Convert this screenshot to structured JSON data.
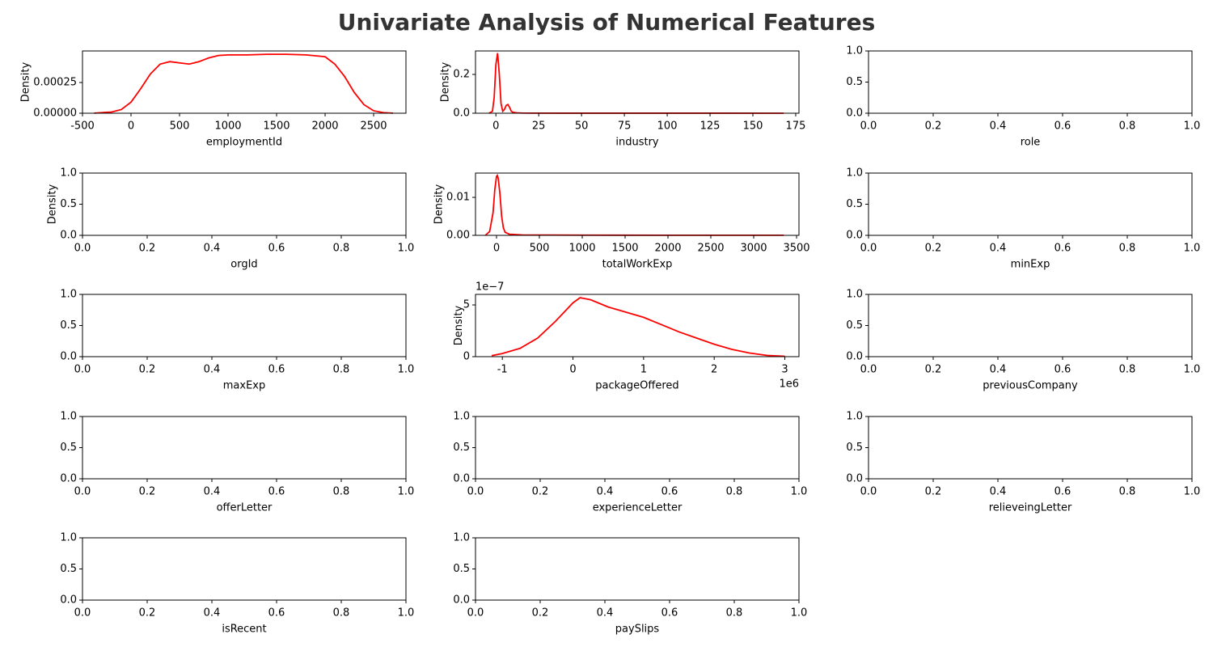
{
  "title": "Univariate Analysis of Numerical Features",
  "chart_data": [
    {
      "type": "line",
      "xlabel": "employmentId",
      "ylabel": "Density",
      "color": "red",
      "x": [
        -380,
        -200,
        -100,
        0,
        100,
        200,
        300,
        400,
        500,
        600,
        700,
        800,
        900,
        1000,
        1200,
        1400,
        1600,
        1800,
        2000,
        2100,
        2200,
        2300,
        2400,
        2500,
        2600,
        2700
      ],
      "values": [
        1e-06,
        1e-05,
        3e-05,
        9e-05,
        0.0002,
        0.00032,
        0.0004,
        0.00042,
        0.00041,
        0.0004,
        0.00042,
        0.00045,
        0.00047,
        0.000475,
        0.000475,
        0.00048,
        0.00048,
        0.000475,
        0.00046,
        0.0004,
        0.0003,
        0.00017,
        7e-05,
        2e-05,
        5e-06,
        1e-06
      ],
      "xlim": [
        -500,
        2833
      ],
      "ylim": [
        0,
        0.000507
      ],
      "xticks": [
        -500,
        0,
        500,
        1000,
        1500,
        2000,
        2500
      ],
      "yticks": [
        {
          "value": 0,
          "label": "0.00000"
        },
        {
          "value": 0.00025,
          "label": "0.00025"
        }
      ]
    },
    {
      "type": "line",
      "xlabel": "industry",
      "ylabel": "Density",
      "color": "red",
      "x": [
        -4,
        -2,
        -1,
        0,
        1,
        2,
        3,
        4,
        5,
        6,
        7,
        8,
        9,
        10,
        12,
        15,
        20,
        40,
        80,
        120,
        168
      ],
      "values": [
        0,
        0.01,
        0.08,
        0.25,
        0.31,
        0.2,
        0.05,
        0.01,
        0.02,
        0.04,
        0.045,
        0.03,
        0.01,
        0.005,
        0.002,
        0.001,
        0.0005,
        0.0003,
        0.0002,
        0.0002,
        0.0001
      ],
      "xlim": [
        -11.9,
        176.9
      ],
      "ylim": [
        0,
        0.321
      ],
      "xticks": [
        0,
        25,
        50,
        75,
        100,
        125,
        150,
        175
      ],
      "yticks": [
        {
          "value": 0,
          "label": "0.0"
        },
        {
          "value": 0.2,
          "label": "0.2"
        }
      ]
    },
    {
      "type": "line",
      "xlabel": "role",
      "xlim": [
        0,
        1
      ],
      "ylim": [
        0,
        1
      ],
      "xticks": [
        {
          "value": 0,
          "label": "0.0"
        },
        {
          "value": 0.2,
          "label": "0.2"
        },
        {
          "value": 0.4,
          "label": "0.4"
        },
        {
          "value": 0.6,
          "label": "0.6"
        },
        {
          "value": 0.8,
          "label": "0.8"
        },
        {
          "value": 1,
          "label": "1.0"
        }
      ],
      "yticks": [
        {
          "value": 0,
          "label": "0.0"
        },
        {
          "value": 0.5,
          "label": "0.5"
        },
        {
          "value": 1,
          "label": "1.0"
        }
      ]
    },
    {
      "type": "line",
      "xlabel": "orgId",
      "ylabel": "Density",
      "xlim": [
        0,
        1
      ],
      "ylim": [
        0,
        1
      ],
      "xticks": [
        {
          "value": 0,
          "label": "0.0"
        },
        {
          "value": 0.2,
          "label": "0.2"
        },
        {
          "value": 0.4,
          "label": "0.4"
        },
        {
          "value": 0.6,
          "label": "0.6"
        },
        {
          "value": 0.8,
          "label": "0.8"
        },
        {
          "value": 1,
          "label": "1.0"
        }
      ],
      "yticks": [
        {
          "value": 0,
          "label": "0.0"
        },
        {
          "value": 0.5,
          "label": "0.5"
        },
        {
          "value": 1,
          "label": "1.0"
        }
      ]
    },
    {
      "type": "line",
      "xlabel": "totalWorkExp",
      "ylabel": "Density",
      "color": "red",
      "x": [
        -130,
        -80,
        -40,
        -20,
        0,
        10,
        20,
        40,
        60,
        80,
        100,
        150,
        300,
        1000,
        2000,
        3350
      ],
      "values": [
        0,
        0.001,
        0.006,
        0.012,
        0.0155,
        0.0158,
        0.015,
        0.011,
        0.005,
        0.002,
        0.0008,
        0.0003,
        0.0001,
        5e-05,
        3e-05,
        2e-05
      ],
      "xlim": [
        -245,
        3528
      ],
      "ylim": [
        0,
        0.0164
      ],
      "xticks": [
        0,
        500,
        1000,
        1500,
        2000,
        2500,
        3000,
        3500
      ],
      "yticks": [
        {
          "value": 0,
          "label": "0.00"
        },
        {
          "value": 0.01,
          "label": "0.01"
        }
      ]
    },
    {
      "type": "line",
      "xlabel": "minExp",
      "xlim": [
        0,
        1
      ],
      "ylim": [
        0,
        1
      ],
      "xticks": [
        {
          "value": 0,
          "label": "0.0"
        },
        {
          "value": 0.2,
          "label": "0.2"
        },
        {
          "value": 0.4,
          "label": "0.4"
        },
        {
          "value": 0.6,
          "label": "0.6"
        },
        {
          "value": 0.8,
          "label": "0.8"
        },
        {
          "value": 1,
          "label": "1.0"
        }
      ],
      "yticks": [
        {
          "value": 0,
          "label": "0.0"
        },
        {
          "value": 0.5,
          "label": "0.5"
        },
        {
          "value": 1,
          "label": "1.0"
        }
      ]
    },
    {
      "type": "line",
      "xlabel": "maxExp",
      "xlim": [
        0,
        1
      ],
      "ylim": [
        0,
        1
      ],
      "xticks": [
        {
          "value": 0,
          "label": "0.0"
        },
        {
          "value": 0.2,
          "label": "0.2"
        },
        {
          "value": 0.4,
          "label": "0.4"
        },
        {
          "value": 0.6,
          "label": "0.6"
        },
        {
          "value": 0.8,
          "label": "0.8"
        },
        {
          "value": 1,
          "label": "1.0"
        }
      ],
      "yticks": [
        {
          "value": 0,
          "label": "0.0"
        },
        {
          "value": 0.5,
          "label": "0.5"
        },
        {
          "value": 1,
          "label": "1.0"
        }
      ]
    },
    {
      "type": "line",
      "xlabel": "packageOffered",
      "ylabel": "Density",
      "color": "red",
      "x_offset_label": "1e6",
      "y_offset_label": "1e−7",
      "x": [
        -1.15,
        -1,
        -0.75,
        -0.5,
        -0.25,
        0,
        0.1,
        0.25,
        0.5,
        0.75,
        1,
        1.25,
        1.5,
        1.75,
        2,
        2.25,
        2.5,
        2.75,
        3
      ],
      "values": [
        0.1,
        0.3,
        0.8,
        1.8,
        3.4,
        5.2,
        5.7,
        5.5,
        4.8,
        4.3,
        3.8,
        3.1,
        2.4,
        1.8,
        1.2,
        0.7,
        0.35,
        0.12,
        0.04
      ],
      "xlim": [
        -1.38,
        3.2
      ],
      "ylim": [
        0,
        6.02
      ],
      "xticks": [
        -1,
        0,
        1,
        2,
        3
      ],
      "yticks": [
        0,
        5
      ]
    },
    {
      "type": "line",
      "xlabel": "previousCompany",
      "xlim": [
        0,
        1
      ],
      "ylim": [
        0,
        1
      ],
      "xticks": [
        {
          "value": 0,
          "label": "0.0"
        },
        {
          "value": 0.2,
          "label": "0.2"
        },
        {
          "value": 0.4,
          "label": "0.4"
        },
        {
          "value": 0.6,
          "label": "0.6"
        },
        {
          "value": 0.8,
          "label": "0.8"
        },
        {
          "value": 1,
          "label": "1.0"
        }
      ],
      "yticks": [
        {
          "value": 0,
          "label": "0.0"
        },
        {
          "value": 0.5,
          "label": "0.5"
        },
        {
          "value": 1,
          "label": "1.0"
        }
      ]
    },
    {
      "type": "line",
      "xlabel": "offerLetter",
      "xlim": [
        0,
        1
      ],
      "ylim": [
        0,
        1
      ],
      "xticks": [
        {
          "value": 0,
          "label": "0.0"
        },
        {
          "value": 0.2,
          "label": "0.2"
        },
        {
          "value": 0.4,
          "label": "0.4"
        },
        {
          "value": 0.6,
          "label": "0.6"
        },
        {
          "value": 0.8,
          "label": "0.8"
        },
        {
          "value": 1,
          "label": "1.0"
        }
      ],
      "yticks": [
        {
          "value": 0,
          "label": "0.0"
        },
        {
          "value": 0.5,
          "label": "0.5"
        },
        {
          "value": 1,
          "label": "1.0"
        }
      ]
    },
    {
      "type": "line",
      "xlabel": "experienceLetter",
      "xlim": [
        0,
        1
      ],
      "ylim": [
        0,
        1
      ],
      "xticks": [
        {
          "value": 0,
          "label": "0.0"
        },
        {
          "value": 0.2,
          "label": "0.2"
        },
        {
          "value": 0.4,
          "label": "0.4"
        },
        {
          "value": 0.6,
          "label": "0.6"
        },
        {
          "value": 0.8,
          "label": "0.8"
        },
        {
          "value": 1,
          "label": "1.0"
        }
      ],
      "yticks": [
        {
          "value": 0,
          "label": "0.0"
        },
        {
          "value": 0.5,
          "label": "0.5"
        },
        {
          "value": 1,
          "label": "1.0"
        }
      ]
    },
    {
      "type": "line",
      "xlabel": "relieveingLetter",
      "xlim": [
        0,
        1
      ],
      "ylim": [
        0,
        1
      ],
      "xticks": [
        {
          "value": 0,
          "label": "0.0"
        },
        {
          "value": 0.2,
          "label": "0.2"
        },
        {
          "value": 0.4,
          "label": "0.4"
        },
        {
          "value": 0.6,
          "label": "0.6"
        },
        {
          "value": 0.8,
          "label": "0.8"
        },
        {
          "value": 1,
          "label": "1.0"
        }
      ],
      "yticks": [
        {
          "value": 0,
          "label": "0.0"
        },
        {
          "value": 0.5,
          "label": "0.5"
        },
        {
          "value": 1,
          "label": "1.0"
        }
      ]
    },
    {
      "type": "line",
      "xlabel": "isRecent",
      "xlim": [
        0,
        1
      ],
      "ylim": [
        0,
        1
      ],
      "xticks": [
        {
          "value": 0,
          "label": "0.0"
        },
        {
          "value": 0.2,
          "label": "0.2"
        },
        {
          "value": 0.4,
          "label": "0.4"
        },
        {
          "value": 0.6,
          "label": "0.6"
        },
        {
          "value": 0.8,
          "label": "0.8"
        },
        {
          "value": 1,
          "label": "1.0"
        }
      ],
      "yticks": [
        {
          "value": 0,
          "label": "0.0"
        },
        {
          "value": 0.5,
          "label": "0.5"
        },
        {
          "value": 1,
          "label": "1.0"
        }
      ]
    },
    {
      "type": "line",
      "xlabel": "paySlips",
      "xlim": [
        0,
        1
      ],
      "ylim": [
        0,
        1
      ],
      "xticks": [
        {
          "value": 0,
          "label": "0.0"
        },
        {
          "value": 0.2,
          "label": "0.2"
        },
        {
          "value": 0.4,
          "label": "0.4"
        },
        {
          "value": 0.6,
          "label": "0.6"
        },
        {
          "value": 0.8,
          "label": "0.8"
        },
        {
          "value": 1,
          "label": "1.0"
        }
      ],
      "yticks": [
        {
          "value": 0,
          "label": "0.0"
        },
        {
          "value": 0.5,
          "label": "0.5"
        },
        {
          "value": 1,
          "label": "1.0"
        }
      ]
    }
  ]
}
